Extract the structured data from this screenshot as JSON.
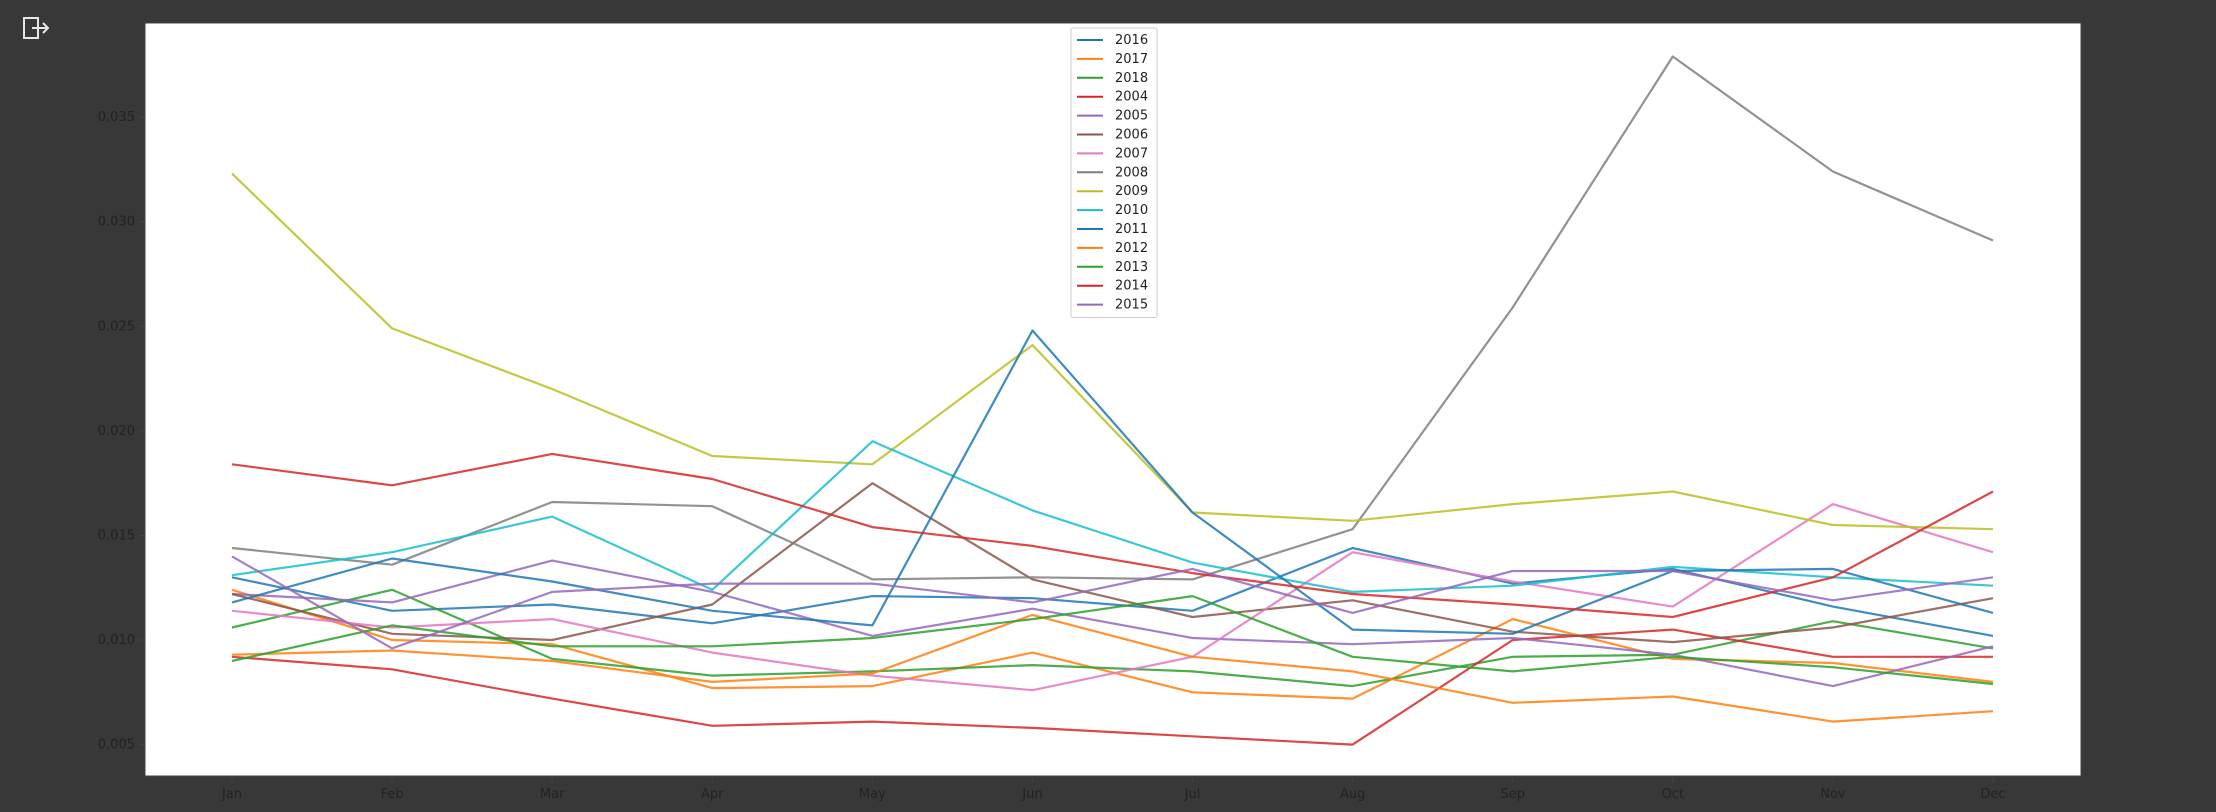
{
  "output_icon": "output-toggle-icon",
  "chart_data": {
    "type": "line",
    "categories": [
      "Jan",
      "Feb",
      "Mar",
      "Apr",
      "May",
      "Jun",
      "Jul",
      "Aug",
      "Sep",
      "Oct",
      "Nov",
      "Dec"
    ],
    "ylim": [
      0.0035,
      0.0395
    ],
    "yticks": [
      {
        "value": 0.005,
        "label": "0.005"
      },
      {
        "value": 0.01,
        "label": "0.010"
      },
      {
        "value": 0.015,
        "label": "0.015"
      },
      {
        "value": 0.02,
        "label": "0.020"
      },
      {
        "value": 0.025,
        "label": "0.025"
      },
      {
        "value": 0.03,
        "label": "0.030"
      },
      {
        "value": 0.035,
        "label": "0.035"
      }
    ],
    "grid": false,
    "legend_position": "top-center",
    "series": [
      {
        "name": "2016",
        "color": "#1f77b4",
        "values": [
          0.013,
          0.0114,
          0.0117,
          0.0108,
          0.0121,
          0.012,
          0.0114,
          0.0144,
          0.0127,
          0.0134,
          0.0116,
          0.0102
        ]
      },
      {
        "name": "2017",
        "color": "#ff7f0e",
        "values": [
          0.0124,
          0.01,
          0.0098,
          0.0077,
          0.0078,
          0.0094,
          0.0075,
          0.0072,
          0.011,
          0.0091,
          0.0089,
          0.008
        ]
      },
      {
        "name": "2018",
        "color": "#2ca02c",
        "values": [
          0.0106,
          0.0124,
          0.0091,
          0.0083,
          0.0085,
          0.0088,
          0.0085,
          0.0078,
          0.0092,
          0.0093,
          0.0109,
          0.0096
        ]
      },
      {
        "name": "2004",
        "color": "#d62728",
        "values": [
          0.0092,
          0.0086,
          0.0072,
          0.0059,
          0.0061,
          0.0058,
          0.0054,
          0.005,
          0.01,
          0.0105,
          0.0092,
          0.0092
        ]
      },
      {
        "name": "2005",
        "color": "#9467bd",
        "values": [
          0.0122,
          0.0118,
          0.0138,
          0.0123,
          0.0102,
          0.0115,
          0.0101,
          0.0098,
          0.0101,
          0.0093,
          0.0078,
          0.0097
        ]
      },
      {
        "name": "2006",
        "color": "#8c564b",
        "values": [
          0.0122,
          0.0103,
          0.01,
          0.0117,
          0.0175,
          0.0129,
          0.0111,
          0.0119,
          0.0104,
          0.0099,
          0.0106,
          0.012
        ]
      },
      {
        "name": "2007",
        "color": "#e377c2",
        "values": [
          0.0114,
          0.0106,
          0.011,
          0.0094,
          0.0083,
          0.0076,
          0.0092,
          0.0142,
          0.0128,
          0.0116,
          0.0165,
          0.0142
        ]
      },
      {
        "name": "2008",
        "color": "#7f7f7f",
        "values": [
          0.0144,
          0.0136,
          0.0166,
          0.0164,
          0.0129,
          0.013,
          0.0129,
          0.0153,
          0.0259,
          0.0379,
          0.0324,
          0.0291
        ]
      },
      {
        "name": "2009",
        "color": "#bcbd22",
        "values": [
          0.0323,
          0.0249,
          0.022,
          0.0188,
          0.0184,
          0.0241,
          0.0161,
          0.0157,
          0.0165,
          0.0171,
          0.0155,
          0.0153
        ]
      },
      {
        "name": "2010",
        "color": "#17becf",
        "values": [
          0.0131,
          0.0142,
          0.0159,
          0.0124,
          0.0195,
          0.0162,
          0.0137,
          0.0123,
          0.0126,
          0.0135,
          0.013,
          0.0126
        ]
      },
      {
        "name": "2011",
        "color": "#1f77b4",
        "values": [
          0.0118,
          0.0139,
          0.0128,
          0.0114,
          0.0107,
          0.0248,
          0.0161,
          0.0105,
          0.0103,
          0.0133,
          0.0134,
          0.0113
        ]
      },
      {
        "name": "2012",
        "color": "#ff7f0e",
        "values": [
          0.0093,
          0.0095,
          0.009,
          0.008,
          0.0084,
          0.0112,
          0.0092,
          0.0085,
          0.007,
          0.0073,
          0.0061,
          0.0066
        ]
      },
      {
        "name": "2013",
        "color": "#2ca02c",
        "values": [
          0.009,
          0.0107,
          0.0097,
          0.0097,
          0.0101,
          0.011,
          0.0121,
          0.0092,
          0.0085,
          0.0092,
          0.0087,
          0.0079
        ]
      },
      {
        "name": "2014",
        "color": "#d62728",
        "values": [
          0.0184,
          0.0174,
          0.0189,
          0.0177,
          0.0154,
          0.0145,
          0.0132,
          0.0122,
          0.0117,
          0.0111,
          0.013,
          0.0171
        ]
      },
      {
        "name": "2015",
        "color": "#9467bd",
        "values": [
          0.014,
          0.0096,
          0.0123,
          0.0127,
          0.0127,
          0.0118,
          0.0134,
          0.0113,
          0.0133,
          0.0133,
          0.0119,
          0.013
        ]
      }
    ]
  }
}
